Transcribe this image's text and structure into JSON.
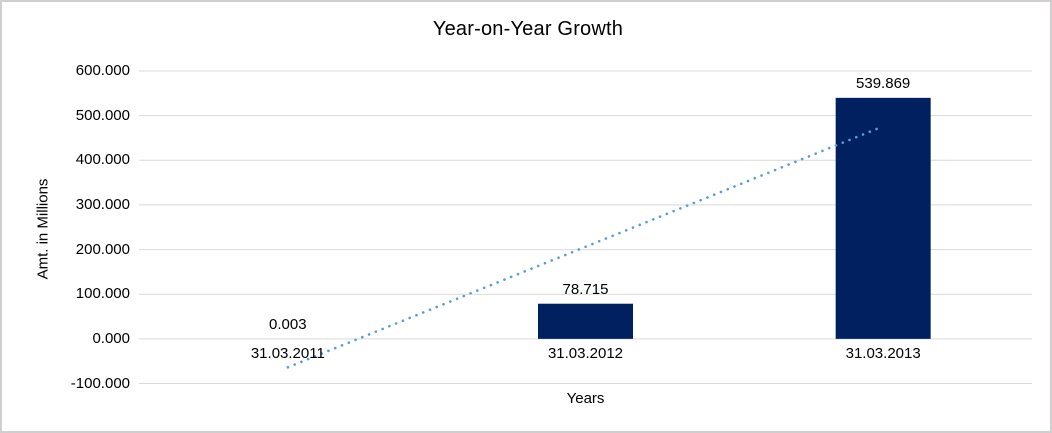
{
  "window": {
    "background_color": "#ffffff",
    "border_color": "#d0cece"
  },
  "chart_data": {
    "type": "bar",
    "title": "Year-on-Year Growth",
    "xlabel": "Years",
    "ylabel": "Amt. in Millions",
    "categories": [
      "31.03.2011",
      "31.03.2012",
      "31.03.2013"
    ],
    "values": [
      0.003,
      78.715,
      539.869
    ],
    "data_labels": [
      "0.003",
      "78.715",
      "539.869"
    ],
    "ylim": [
      -100,
      600
    ],
    "ytick_step": 100,
    "ytick_labels": [
      "600.000",
      "500.000",
      "400.000",
      "300.000",
      "200.000",
      "100.000",
      "0.000",
      "-100.000"
    ],
    "grid": true,
    "legend": "none",
    "bar_color": "#002060",
    "gridline_color": "#d9d9d9",
    "text_color": "#000000",
    "trendline": {
      "type": "linear",
      "style": "dotted",
      "color": "#5b9bd5",
      "start_value": -63.7,
      "end_value": 476.1
    }
  }
}
